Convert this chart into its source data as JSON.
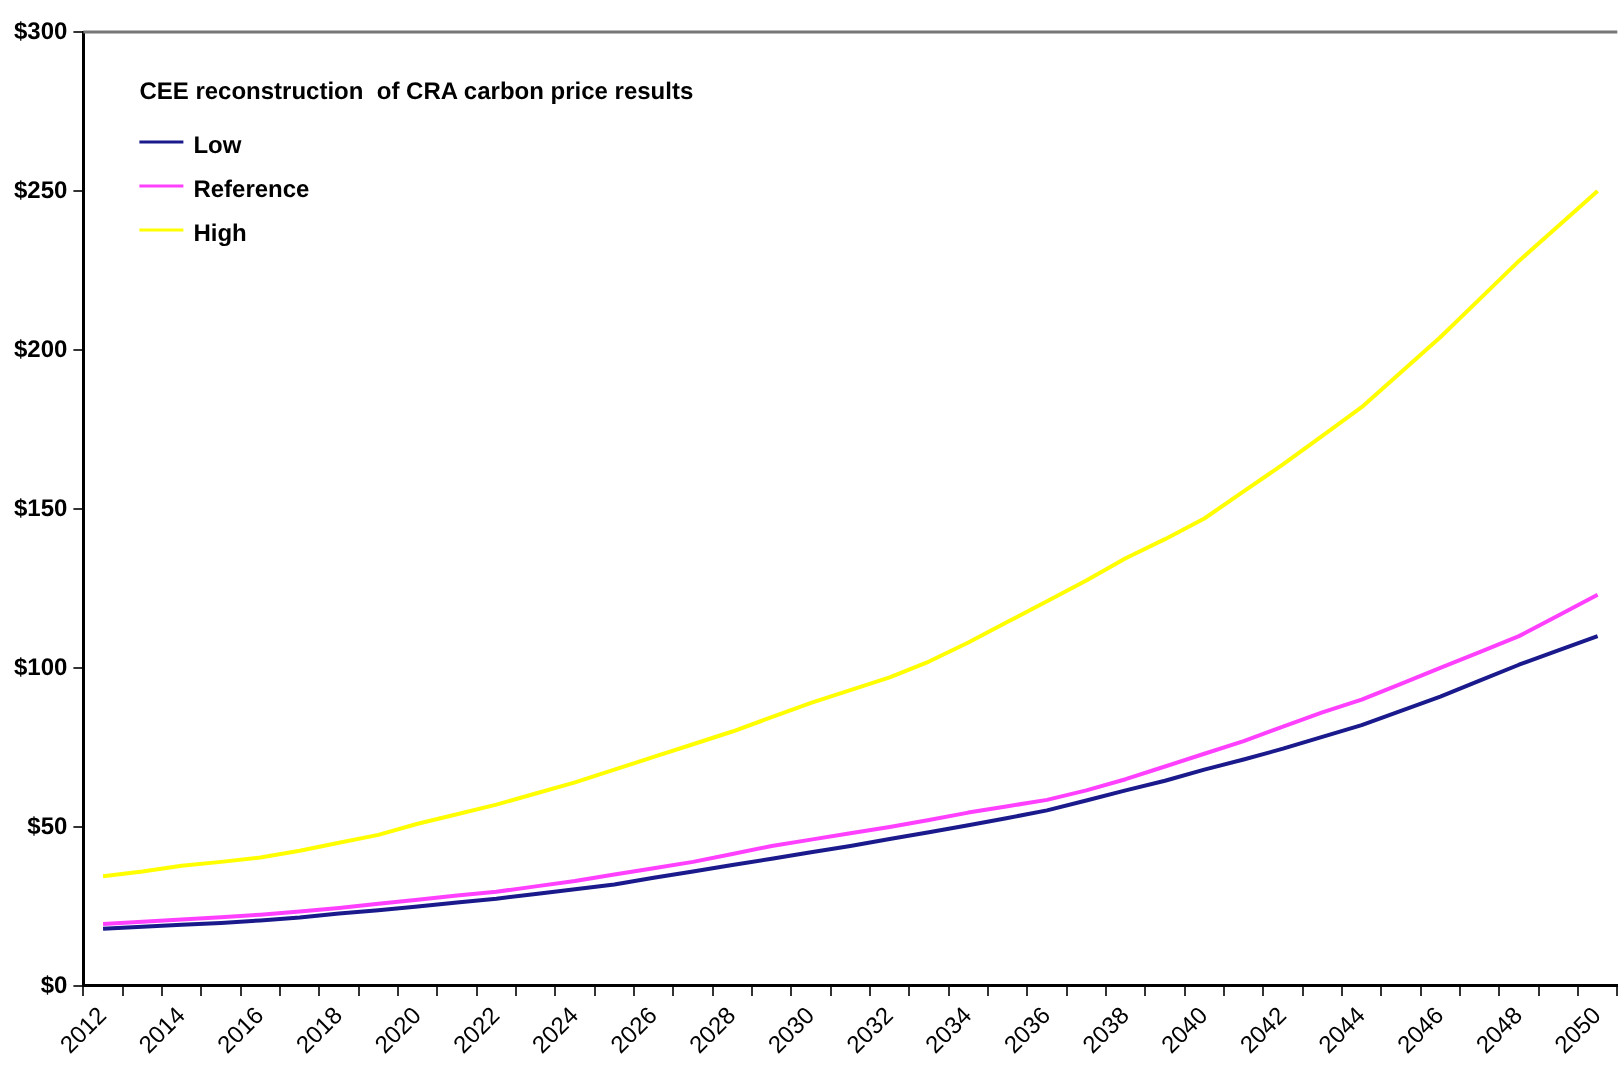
{
  "chart_data": {
    "type": "line",
    "legend_title": "CEE reconstruction  of CRA carbon price results",
    "categories": [
      "2012",
      null,
      "2014",
      null,
      "2016",
      null,
      "2018",
      null,
      "2020",
      null,
      "2022",
      null,
      "2024",
      null,
      "2026",
      null,
      "2028",
      null,
      "2030",
      null,
      "2032",
      null,
      "2034",
      null,
      "2036",
      null,
      "2038",
      null,
      "2040",
      null,
      "2042",
      null,
      "2044",
      null,
      "2046",
      null,
      "2048",
      null,
      "2050"
    ],
    "series": [
      {
        "name": "Low",
        "color": "#1a1a8c",
        "values": [
          18.0,
          18.6,
          19.2,
          19.8,
          20.6,
          21.5,
          22.8,
          23.8,
          25.0,
          26.2,
          27.4,
          28.9,
          30.4,
          31.9,
          34.0,
          36.0,
          38.0,
          40.0,
          42.0,
          44.0,
          46.2,
          48.3,
          50.5,
          52.8,
          55.2,
          58.3,
          61.5,
          64.5,
          68.0,
          71.2,
          74.6,
          78.3,
          82.0,
          86.5,
          91.0,
          96.0,
          101.0,
          105.5,
          110.0
        ]
      },
      {
        "name": "Reference",
        "color": "#ff40ff",
        "values": [
          19.5,
          20.2,
          20.9,
          21.6,
          22.4,
          23.4,
          24.5,
          25.8,
          27.1,
          28.4,
          29.6,
          31.3,
          33.0,
          35.0,
          37.0,
          39.0,
          41.5,
          44.0,
          46.0,
          48.0,
          50.0,
          52.2,
          54.5,
          56.5,
          58.5,
          61.5,
          65.0,
          69.0,
          73.0,
          77.0,
          81.5,
          86.0,
          90.0,
          95.0,
          100.0,
          105.0,
          110.0,
          116.5,
          123.0
        ]
      },
      {
        "name": "High",
        "color": "#ffff00",
        "values": [
          34.5,
          36.0,
          37.8,
          39.0,
          40.4,
          42.5,
          45.0,
          47.5,
          51.0,
          54.0,
          57.0,
          60.5,
          64.0,
          68.0,
          72.0,
          76.0,
          80.0,
          84.5,
          89.0,
          93.0,
          97.0,
          102.0,
          108.0,
          114.5,
          121.0,
          127.5,
          134.5,
          140.5,
          147.0,
          155.5,
          164.0,
          173.0,
          182.0,
          193.0,
          204.0,
          216.0,
          228.0,
          239.0,
          250.0
        ]
      }
    ],
    "ylim": [
      0,
      300
    ],
    "yticks": [
      {
        "value": 0,
        "label": "$0"
      },
      {
        "value": 50,
        "label": "$50"
      },
      {
        "value": 100,
        "label": "$100"
      },
      {
        "value": 150,
        "label": "$150"
      },
      {
        "value": 200,
        "label": "$200"
      },
      {
        "value": 250,
        "label": "$250"
      },
      {
        "value": 300,
        "label": "$300"
      }
    ],
    "grid": false,
    "legend": "top left",
    "marker": "none",
    "line_style": "solid"
  }
}
